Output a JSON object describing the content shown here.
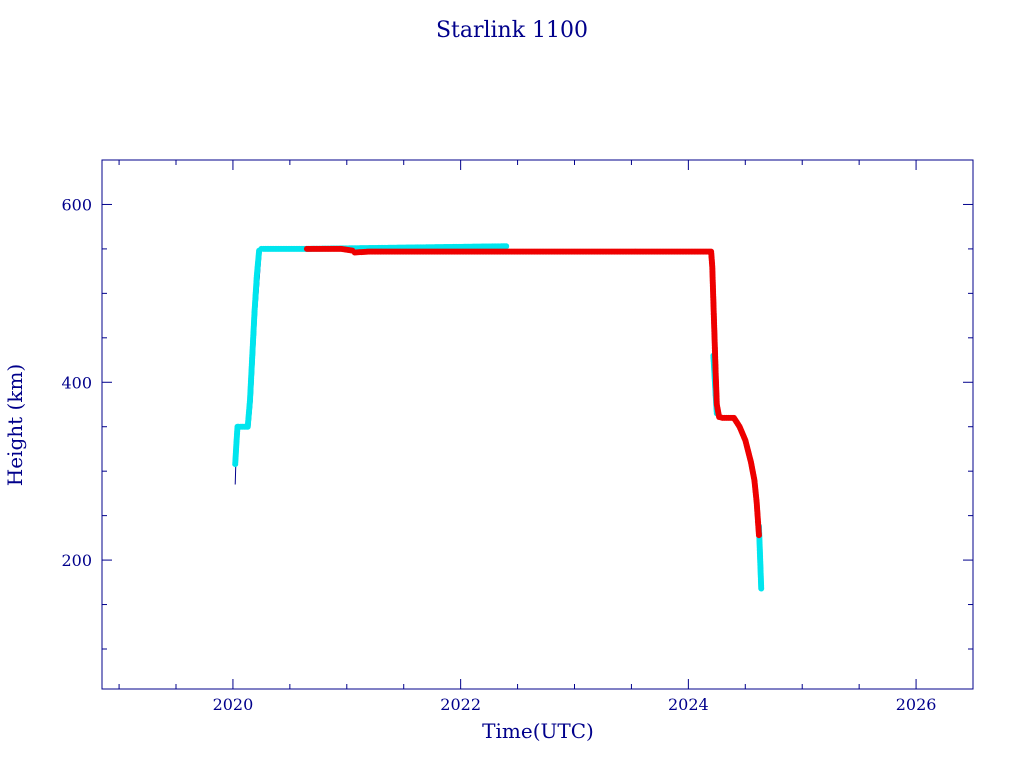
{
  "chart_data": {
    "type": "scatter",
    "title": "Starlink 1100",
    "xlabel": "Time(UTC)",
    "ylabel": "Height (km)",
    "xlim": [
      2018.85,
      2026.5
    ],
    "ylim": [
      55,
      650
    ],
    "x_major_ticks": [
      2020,
      2022,
      2024,
      2026
    ],
    "x_minor_step": 0.5,
    "y_major_ticks": [
      200,
      400,
      600
    ],
    "y_minor_step": 50,
    "grid": false,
    "colors": {
      "axis": "#00008b",
      "cyan_series": "#00e5ee",
      "red_series": "#ee0000",
      "track": "#00008b"
    },
    "series": [
      {
        "color": "cyan",
        "x": [
          2020.02,
          2020.03,
          2020.04,
          2020.05,
          2020.07,
          2020.1,
          2020.13,
          2020.15,
          2020.17,
          2020.19,
          2020.21,
          2020.23,
          2020.25,
          2020.27,
          2020.3,
          2020.4,
          2020.5,
          2020.6,
          2020.63,
          2022.4,
          2024.22,
          2024.24,
          2024.25,
          2024.62,
          2024.64
        ],
        "y": [
          308,
          330,
          350,
          350,
          350,
          350,
          350,
          380,
          430,
          480,
          520,
          548,
          550,
          550,
          550,
          550,
          550,
          550,
          550,
          553,
          430,
          385,
          365,
          238,
          168
        ]
      },
      {
        "color": "red",
        "x": [
          2020.65,
          2020.8,
          2020.95,
          2021.05,
          2021.07,
          2021.2,
          2021.5,
          2022.0,
          2022.5,
          2023.0,
          2023.5,
          2024.0,
          2024.2,
          2024.21,
          2024.22,
          2024.23,
          2024.24,
          2024.25,
          2024.27,
          2024.3,
          2024.35,
          2024.4,
          2024.45,
          2024.5,
          2024.55,
          2024.58,
          2024.6,
          2024.62
        ],
        "y": [
          550,
          550,
          550,
          548,
          546,
          547,
          547,
          547,
          547,
          547,
          547,
          547,
          547,
          530,
          490,
          450,
          410,
          375,
          361,
          360,
          360,
          360,
          350,
          335,
          310,
          290,
          265,
          228
        ]
      }
    ],
    "track": {
      "x": [
        2020.02,
        2020.03,
        2020.04,
        2020.05,
        2020.15,
        2020.17,
        2020.21,
        2020.25,
        2021.05,
        2021.07,
        2024.2,
        2024.25,
        2024.27,
        2024.4,
        2024.5,
        2024.6,
        2024.62,
        2024.64
      ],
      "y": [
        285,
        330,
        350,
        350,
        350,
        380,
        480,
        550,
        550,
        546,
        547,
        375,
        360,
        360,
        335,
        265,
        228,
        168
      ]
    }
  }
}
